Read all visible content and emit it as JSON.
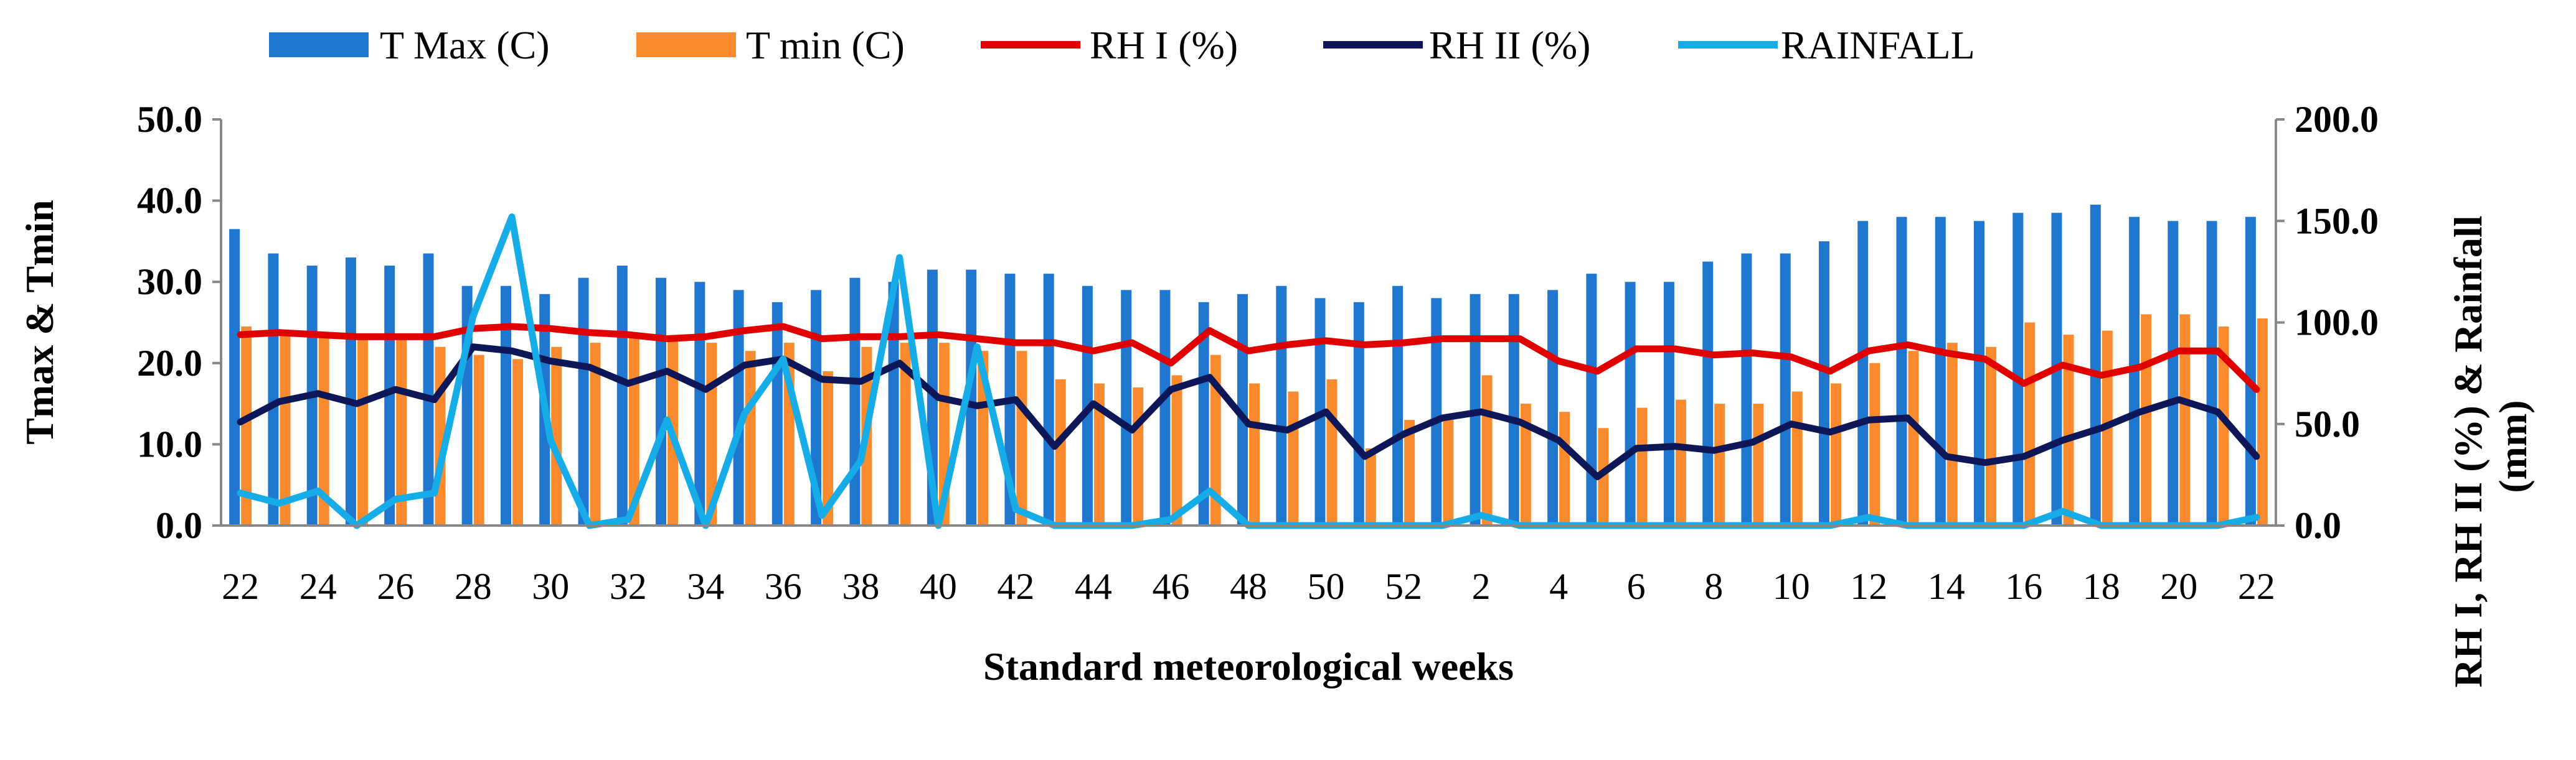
{
  "chart_data": {
    "type": "bar",
    "title": "",
    "xlabel": "Standard meteorological weeks",
    "ylabel_left": "Tmax & Tmin",
    "ylabel_right": "RH I, RH II (%) & Rainfall (mm)",
    "ylim_left": [
      0,
      50
    ],
    "ylim_right": [
      0,
      200
    ],
    "yticks_left": [
      "0.0",
      "10.0",
      "20.0",
      "30.0",
      "40.0",
      "50.0"
    ],
    "yticks_right": [
      "0.0",
      "50.0",
      "100.0",
      "150.0",
      "200.0"
    ],
    "grid": false,
    "legend_position": "top",
    "categories": [
      "22",
      "23",
      "24",
      "25",
      "26",
      "27",
      "28",
      "29",
      "30",
      "31",
      "32",
      "33",
      "34",
      "35",
      "36",
      "37",
      "38",
      "39",
      "40",
      "41",
      "42",
      "43",
      "44",
      "45",
      "46",
      "47",
      "48",
      "49",
      "50",
      "51",
      "52",
      "1",
      "2",
      "3",
      "4",
      "5",
      "6",
      "7",
      "8",
      "9",
      "10",
      "11",
      "12",
      "13",
      "14",
      "15",
      "16",
      "17",
      "18",
      "19",
      "20",
      "21",
      "22"
    ],
    "x_tick_labels": [
      "22",
      "24",
      "26",
      "28",
      "30",
      "32",
      "34",
      "36",
      "38",
      "40",
      "42",
      "44",
      "46",
      "48",
      "50",
      "52",
      "2",
      "4",
      "6",
      "8",
      "10",
      "12",
      "14",
      "16",
      "18",
      "20",
      "22"
    ],
    "series": [
      {
        "name": "T Max (C)",
        "type": "bar",
        "axis": "left",
        "color": "#1F77D0",
        "values": [
          36.5,
          33.5,
          32.0,
          33.0,
          32.0,
          33.5,
          29.5,
          29.5,
          28.5,
          30.5,
          32.0,
          30.5,
          30.0,
          29.0,
          27.5,
          29.0,
          30.5,
          30.0,
          31.5,
          31.5,
          31.0,
          31.0,
          29.5,
          29.0,
          29.0,
          27.5,
          28.5,
          29.5,
          28.0,
          27.5,
          29.5,
          28.0,
          28.5,
          28.5,
          29.0,
          31.0,
          30.0,
          30.0,
          32.5,
          33.5,
          33.5,
          35.0,
          37.5,
          38.0,
          38.0,
          37.5,
          38.5,
          38.5,
          39.5,
          38.0,
          37.5,
          37.5,
          38.0
        ]
      },
      {
        "name": "T min (C)",
        "type": "bar",
        "axis": "left",
        "color": "#F98B2E",
        "values": [
          24.5,
          23.5,
          23.5,
          23.5,
          23.0,
          22.0,
          21.0,
          20.5,
          22.0,
          22.5,
          23.5,
          23.0,
          22.5,
          21.5,
          22.5,
          19.0,
          22.0,
          22.5,
          22.5,
          21.5,
          21.5,
          18.0,
          17.5,
          17.0,
          18.5,
          21.0,
          17.5,
          16.5,
          18.0,
          9.5,
          13.0,
          13.0,
          18.5,
          15.0,
          14.0,
          12.0,
          14.5,
          15.5,
          15.0,
          15.0,
          16.5,
          17.5,
          20.0,
          21.5,
          22.5,
          22.0,
          25.0,
          23.5,
          24.0,
          26.0,
          26.0,
          24.5,
          25.5
        ]
      },
      {
        "name": "RH I (%)",
        "type": "line",
        "axis": "right",
        "color": "#E00000",
        "values": [
          94,
          95,
          94,
          93,
          93,
          93,
          97,
          98,
          97,
          95,
          94,
          92,
          93,
          96,
          98,
          92,
          93,
          93,
          94,
          92,
          90,
          90,
          86,
          90,
          80,
          96,
          86,
          89,
          91,
          89,
          90,
          92,
          92,
          92,
          81,
          76,
          87,
          87,
          84,
          85,
          83,
          76,
          86,
          89,
          85,
          82,
          70,
          79,
          74,
          78,
          86,
          86,
          67
        ]
      },
      {
        "name": "RH II (%)",
        "type": "line",
        "axis": "right",
        "color": "#0D1656",
        "values": [
          51,
          61,
          65,
          60,
          67,
          62,
          88,
          86,
          81,
          78,
          70,
          76,
          67,
          79,
          82,
          72,
          71,
          80,
          63,
          59,
          62,
          39,
          60,
          47,
          67,
          73,
          50,
          47,
          56,
          34,
          45,
          53,
          56,
          51,
          42,
          24,
          38,
          39,
          37,
          41,
          50,
          46,
          52,
          53,
          34,
          31,
          34,
          42,
          48,
          56,
          62,
          56,
          34
        ]
      },
      {
        "name": "RAINFALL",
        "type": "line",
        "axis": "right",
        "color": "#15ACE8",
        "values": [
          16,
          11,
          17,
          0,
          13,
          16,
          103,
          152,
          42,
          0,
          3,
          52,
          0,
          55,
          82,
          5,
          32,
          132,
          0,
          88,
          8,
          0,
          0,
          0,
          3,
          17,
          0,
          0,
          0,
          0,
          0,
          0,
          5,
          0,
          0,
          0,
          0,
          0,
          0,
          0,
          0,
          0,
          4,
          0,
          0,
          0,
          0,
          7,
          0,
          0,
          0,
          0,
          4
        ]
      }
    ]
  }
}
